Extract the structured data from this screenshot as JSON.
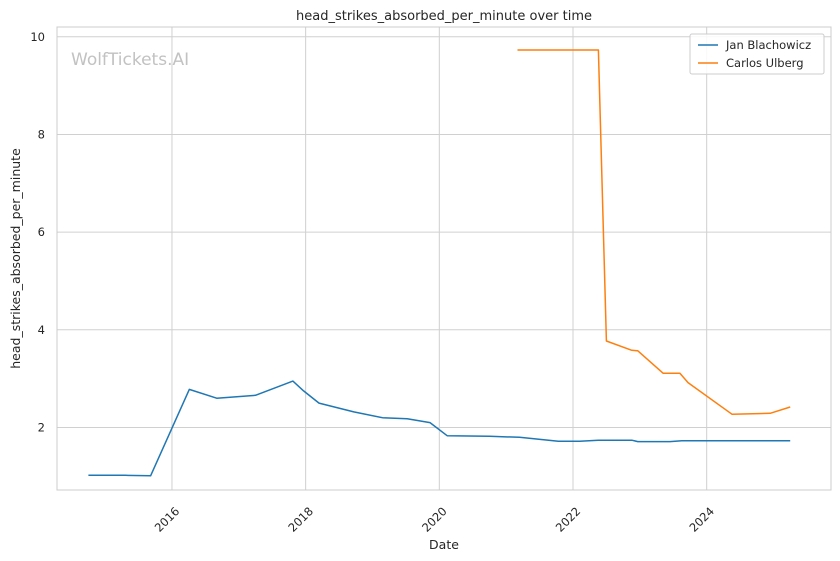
{
  "chart_data": {
    "type": "line",
    "title": "head_strikes_absorbed_per_minute over time",
    "xlabel": "Date",
    "ylabel": "head_strikes_absorbed_per_minute",
    "watermark": "WolfTickets.AI",
    "xlim": [
      2014.28,
      2025.86
    ],
    "ylim": [
      0.72,
      10.2
    ],
    "x_ticks": [
      2016,
      2018,
      2020,
      2022,
      2024
    ],
    "x_tick_labels": [
      "2016",
      "2018",
      "2020",
      "2022",
      "2024"
    ],
    "y_ticks": [
      2,
      4,
      6,
      8,
      10
    ],
    "y_tick_labels": [
      "2",
      "4",
      "6",
      "8",
      "10"
    ],
    "grid": true,
    "legend_position": "top-right",
    "series": [
      {
        "name": "Jan Blachowicz",
        "color": "#1f77b4",
        "x": [
          2014.75,
          2015.3,
          2015.68,
          2016.26,
          2016.67,
          2017.25,
          2017.81,
          2017.97,
          2018.2,
          2018.72,
          2019.15,
          2019.52,
          2019.86,
          2020.12,
          2020.75,
          2021.2,
          2021.78,
          2022.1,
          2022.38,
          2022.88,
          2022.97,
          2023.45,
          2023.63,
          2024.1,
          2024.55,
          2025.25
        ],
        "y": [
          1.02,
          1.02,
          1.01,
          2.78,
          2.6,
          2.66,
          2.95,
          2.75,
          2.5,
          2.32,
          2.2,
          2.18,
          2.1,
          1.83,
          1.82,
          1.8,
          1.72,
          1.72,
          1.74,
          1.74,
          1.71,
          1.71,
          1.73,
          1.73,
          1.73,
          1.73
        ]
      },
      {
        "name": "Carlos Ulberg",
        "color": "#ff7f0e",
        "x": [
          2021.17,
          2022.38,
          2022.5,
          2022.88,
          2022.97,
          2023.35,
          2023.6,
          2023.72,
          2024.38,
          2024.95,
          2025.25
        ],
        "y": [
          9.73,
          9.73,
          3.77,
          3.58,
          3.57,
          3.11,
          3.11,
          2.92,
          2.27,
          2.29,
          2.42
        ]
      }
    ]
  }
}
